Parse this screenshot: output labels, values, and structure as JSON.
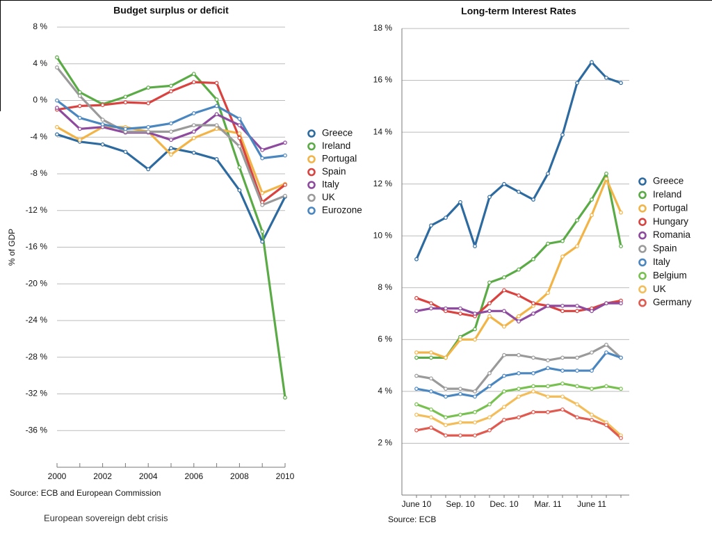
{
  "caption": "European sovereign debt crisis",
  "chart_data": [
    {
      "type": "line",
      "title": "Budget surplus or deficit",
      "ylabel": "% of GDP",
      "source": "Source: ECB and European Commission",
      "x": [
        2000,
        2001,
        2002,
        2003,
        2004,
        2005,
        2006,
        2007,
        2008,
        2009,
        2010
      ],
      "xlim": [
        2000,
        2010
      ],
      "xticks": [
        2000,
        2002,
        2004,
        2006,
        2008,
        2010
      ],
      "ylim": [
        -40,
        8
      ],
      "yticks": [
        {
          "value": 8,
          "label": "8 %"
        },
        {
          "value": 4,
          "label": "4 %"
        },
        {
          "value": 0,
          "label": "0 %"
        },
        {
          "value": -4,
          "label": "-4 %"
        },
        {
          "value": -8,
          "label": "-8 %"
        },
        {
          "value": -12,
          "label": "-12 %"
        },
        {
          "value": -16,
          "label": "-16 %"
        },
        {
          "value": -20,
          "label": "-20 %"
        },
        {
          "value": -24,
          "label": "-24 %"
        },
        {
          "value": -28,
          "label": "-28 %"
        },
        {
          "value": -32,
          "label": "-32 %"
        },
        {
          "value": -36,
          "label": "-36 %"
        }
      ],
      "grid": true,
      "series": [
        {
          "name": "Greece",
          "color": "#2c6aa0",
          "values": [
            -3.7,
            -4.5,
            -4.8,
            -5.6,
            -7.5,
            -5.2,
            -5.7,
            -6.4,
            -9.8,
            -15.4,
            -10.5
          ]
        },
        {
          "name": "Ireland",
          "color": "#5aab46",
          "values": [
            4.7,
            0.9,
            -0.4,
            0.4,
            1.4,
            1.6,
            2.9,
            0.1,
            -7.3,
            -14.3,
            -32.4
          ]
        },
        {
          "name": "Portugal",
          "color": "#f2b447",
          "values": [
            -2.9,
            -4.3,
            -2.9,
            -2.9,
            -3.4,
            -5.9,
            -4.1,
            -3.1,
            -3.6,
            -10.1,
            -9.1
          ]
        },
        {
          "name": "Spain",
          "color": "#d9423e",
          "values": [
            -1.0,
            -0.6,
            -0.5,
            -0.2,
            -0.3,
            1.0,
            2.0,
            1.9,
            -4.1,
            -11.1,
            -9.2
          ]
        },
        {
          "name": "Italy",
          "color": "#8e4a9e",
          "values": [
            -0.8,
            -3.1,
            -2.9,
            -3.5,
            -3.5,
            -4.3,
            -3.4,
            -1.5,
            -2.7,
            -5.4,
            -4.6
          ]
        },
        {
          "name": "UK",
          "color": "#9a9a9a",
          "values": [
            3.6,
            0.5,
            -2.1,
            -3.4,
            -3.4,
            -3.4,
            -2.7,
            -2.7,
            -5.0,
            -11.4,
            -10.4
          ]
        },
        {
          "name": "Eurozone",
          "color": "#4a86c0",
          "values": [
            0.0,
            -1.9,
            -2.6,
            -3.1,
            -2.9,
            -2.5,
            -1.4,
            -0.6,
            -2.0,
            -6.3,
            -6.0
          ]
        }
      ]
    },
    {
      "type": "line",
      "title": "Long-term Interest Rates",
      "source": "Source: ECB",
      "categories": [
        "June 10",
        null,
        null,
        "Sep. 10",
        null,
        null,
        "Dec. 10",
        null,
        null,
        "Mar. 11",
        null,
        null,
        "June 11",
        null,
        null
      ],
      "ylim": [
        0,
        18
      ],
      "yticks": [
        {
          "value": 2,
          "label": "2 %"
        },
        {
          "value": 4,
          "label": "4 %"
        },
        {
          "value": 6,
          "label": "6 %"
        },
        {
          "value": 8,
          "label": "8 %"
        },
        {
          "value": 10,
          "label": "10 %"
        },
        {
          "value": 12,
          "label": "12 %"
        },
        {
          "value": 14,
          "label": "14 %"
        },
        {
          "value": 16,
          "label": "16 %"
        },
        {
          "value": 18,
          "label": "18 %"
        }
      ],
      "grid": true,
      "series": [
        {
          "name": "Greece",
          "color": "#2c6aa0",
          "values": [
            9.1,
            10.4,
            10.7,
            11.3,
            9.6,
            11.5,
            12.0,
            11.7,
            11.4,
            12.4,
            13.9,
            15.9,
            16.7,
            16.1,
            15.9
          ]
        },
        {
          "name": "Ireland",
          "color": "#5aab46",
          "values": [
            5.3,
            5.3,
            5.3,
            6.1,
            6.4,
            8.2,
            8.4,
            8.7,
            9.1,
            9.7,
            9.8,
            10.6,
            11.4,
            12.4,
            9.6
          ]
        },
        {
          "name": "Portugal",
          "color": "#f2b447",
          "values": [
            5.5,
            5.5,
            5.3,
            6.0,
            6.0,
            6.9,
            6.5,
            6.9,
            7.3,
            7.8,
            9.2,
            9.6,
            10.8,
            12.2,
            10.9
          ]
        },
        {
          "name": "Hungary",
          "color": "#d9423e",
          "values": [
            7.6,
            7.4,
            7.1,
            7.0,
            6.9,
            7.4,
            7.9,
            7.7,
            7.4,
            7.3,
            7.1,
            7.1,
            7.2,
            7.4,
            7.5
          ]
        },
        {
          "name": "Romania",
          "color": "#8e4a9e",
          "values": [
            7.1,
            7.2,
            7.2,
            7.2,
            7.0,
            7.1,
            7.1,
            6.7,
            7.0,
            7.3,
            7.3,
            7.3,
            7.1,
            7.4,
            7.4
          ]
        },
        {
          "name": "Spain",
          "color": "#9a9a9a",
          "values": [
            4.6,
            4.5,
            4.1,
            4.1,
            4.0,
            4.7,
            5.4,
            5.4,
            5.3,
            5.2,
            5.3,
            5.3,
            5.5,
            5.8,
            5.3
          ]
        },
        {
          "name": "Italy",
          "color": "#4a86c0",
          "values": [
            4.1,
            4.0,
            3.8,
            3.9,
            3.8,
            4.2,
            4.6,
            4.7,
            4.7,
            4.9,
            4.8,
            4.8,
            4.8,
            5.5,
            5.3
          ]
        },
        {
          "name": "Belgium",
          "color": "#78c050",
          "values": [
            3.5,
            3.3,
            3.0,
            3.1,
            3.2,
            3.5,
            4.0,
            4.1,
            4.2,
            4.2,
            4.3,
            4.2,
            4.1,
            4.2,
            4.1
          ]
        },
        {
          "name": "UK",
          "color": "#f3bd5a",
          "values": [
            3.1,
            3.0,
            2.7,
            2.8,
            2.8,
            3.0,
            3.4,
            3.8,
            4.0,
            3.8,
            3.8,
            3.5,
            3.1,
            2.8,
            2.3
          ]
        },
        {
          "name": "Germany",
          "color": "#e05a50",
          "values": [
            2.5,
            2.6,
            2.3,
            2.3,
            2.3,
            2.5,
            2.9,
            3.0,
            3.2,
            3.2,
            3.3,
            3.0,
            2.9,
            2.7,
            2.2
          ]
        }
      ]
    }
  ]
}
